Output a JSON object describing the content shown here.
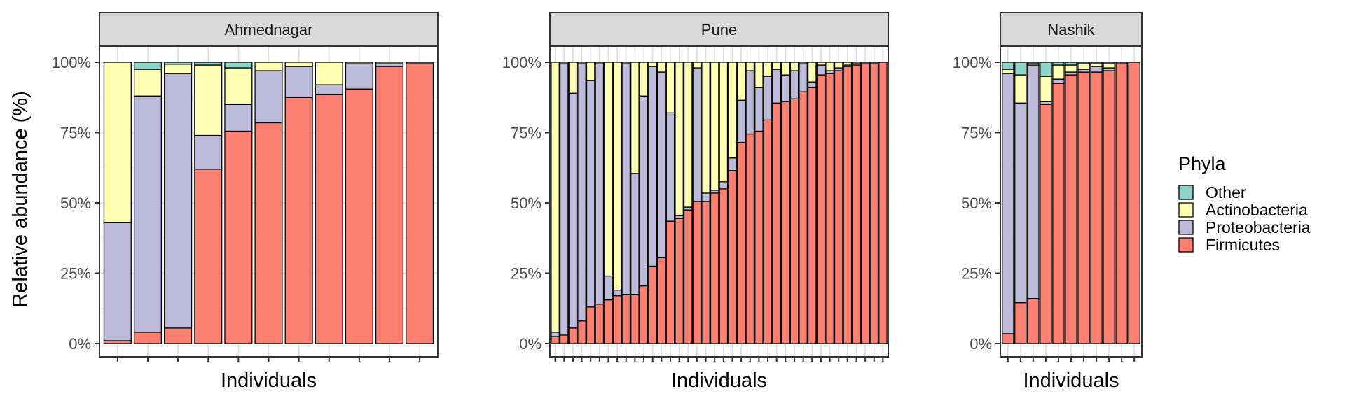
{
  "chart_data": {
    "type": "bar",
    "stacked": true,
    "ylabel": "Relative abundance (%)",
    "xlabel": "Individuals",
    "y_ticks": [
      "0%",
      "25%",
      "50%",
      "75%",
      "100%"
    ],
    "ylim": [
      0,
      100
    ],
    "grid": true,
    "legend": {
      "title": "Phyla",
      "position": "right",
      "items": [
        {
          "name": "Other",
          "color": "#8DD3C7"
        },
        {
          "name": "Actinobacteria",
          "color": "#FFFFB3"
        },
        {
          "name": "Proteobacteria",
          "color": "#BEBADA"
        },
        {
          "name": "Firmicutes",
          "color": "#FB8072"
        }
      ]
    },
    "stack_order": [
      "Firmicutes",
      "Proteobacteria",
      "Actinobacteria",
      "Other"
    ],
    "panels": [
      {
        "title": "Ahmednagar",
        "bars": [
          {
            "Firmicutes": 1,
            "Proteobacteria": 42,
            "Actinobacteria": 57,
            "Other": 0
          },
          {
            "Firmicutes": 4,
            "Proteobacteria": 84,
            "Actinobacteria": 9.5,
            "Other": 2.5
          },
          {
            "Firmicutes": 5.5,
            "Proteobacteria": 90.5,
            "Actinobacteria": 3.3,
            "Other": 0.7
          },
          {
            "Firmicutes": 62,
            "Proteobacteria": 12,
            "Actinobacteria": 25,
            "Other": 1
          },
          {
            "Firmicutes": 75.5,
            "Proteobacteria": 9.5,
            "Actinobacteria": 13,
            "Other": 2
          },
          {
            "Firmicutes": 78.5,
            "Proteobacteria": 18.5,
            "Actinobacteria": 3,
            "Other": 0
          },
          {
            "Firmicutes": 87.5,
            "Proteobacteria": 11,
            "Actinobacteria": 1.5,
            "Other": 0
          },
          {
            "Firmicutes": 88.5,
            "Proteobacteria": 3.5,
            "Actinobacteria": 8,
            "Other": 0
          },
          {
            "Firmicutes": 90.5,
            "Proteobacteria": 9,
            "Actinobacteria": 0.5,
            "Other": 0
          },
          {
            "Firmicutes": 98.5,
            "Proteobacteria": 1,
            "Actinobacteria": 0.5,
            "Other": 0
          },
          {
            "Firmicutes": 99.5,
            "Proteobacteria": 0.5,
            "Actinobacteria": 0,
            "Other": 0
          }
        ]
      },
      {
        "title": "Pune",
        "bars": [
          {
            "Firmicutes": 2.5,
            "Proteobacteria": 1.5,
            "Actinobacteria": 96,
            "Other": 0
          },
          {
            "Firmicutes": 3,
            "Proteobacteria": 96.5,
            "Actinobacteria": 0.5,
            "Other": 0
          },
          {
            "Firmicutes": 5.5,
            "Proteobacteria": 83.5,
            "Actinobacteria": 11,
            "Other": 0
          },
          {
            "Firmicutes": 8,
            "Proteobacteria": 91.5,
            "Actinobacteria": 0.5,
            "Other": 0
          },
          {
            "Firmicutes": 13,
            "Proteobacteria": 80.5,
            "Actinobacteria": 6.5,
            "Other": 0
          },
          {
            "Firmicutes": 14,
            "Proteobacteria": 85.5,
            "Actinobacteria": 0.5,
            "Other": 0
          },
          {
            "Firmicutes": 15.5,
            "Proteobacteria": 8.5,
            "Actinobacteria": 76,
            "Other": 0
          },
          {
            "Firmicutes": 17,
            "Proteobacteria": 2,
            "Actinobacteria": 81,
            "Other": 0
          },
          {
            "Firmicutes": 17.5,
            "Proteobacteria": 82,
            "Actinobacteria": 0.5,
            "Other": 0
          },
          {
            "Firmicutes": 17.5,
            "Proteobacteria": 43,
            "Actinobacteria": 39.5,
            "Other": 0
          },
          {
            "Firmicutes": 20.5,
            "Proteobacteria": 67.5,
            "Actinobacteria": 12,
            "Other": 0
          },
          {
            "Firmicutes": 27.5,
            "Proteobacteria": 71,
            "Actinobacteria": 1.5,
            "Other": 0
          },
          {
            "Firmicutes": 30.5,
            "Proteobacteria": 66,
            "Actinobacteria": 3.5,
            "Other": 0
          },
          {
            "Firmicutes": 43.5,
            "Proteobacteria": 38.5,
            "Actinobacteria": 18,
            "Other": 0
          },
          {
            "Firmicutes": 44.5,
            "Proteobacteria": 1,
            "Actinobacteria": 54.5,
            "Other": 0
          },
          {
            "Firmicutes": 47.5,
            "Proteobacteria": 1,
            "Actinobacteria": 51.5,
            "Other": 0
          },
          {
            "Firmicutes": 50.5,
            "Proteobacteria": 47.5,
            "Actinobacteria": 2,
            "Other": 0
          },
          {
            "Firmicutes": 50.5,
            "Proteobacteria": 3,
            "Actinobacteria": 46.5,
            "Other": 0
          },
          {
            "Firmicutes": 53.5,
            "Proteobacteria": 1,
            "Actinobacteria": 45.5,
            "Other": 0
          },
          {
            "Firmicutes": 55,
            "Proteobacteria": 2.5,
            "Actinobacteria": 42.5,
            "Other": 0
          },
          {
            "Firmicutes": 61.5,
            "Proteobacteria": 4.5,
            "Actinobacteria": 34,
            "Other": 0
          },
          {
            "Firmicutes": 71.5,
            "Proteobacteria": 15,
            "Actinobacteria": 13.5,
            "Other": 0
          },
          {
            "Firmicutes": 74.5,
            "Proteobacteria": 22.5,
            "Actinobacteria": 3,
            "Other": 0
          },
          {
            "Firmicutes": 75.5,
            "Proteobacteria": 15.5,
            "Actinobacteria": 9,
            "Other": 0
          },
          {
            "Firmicutes": 79.5,
            "Proteobacteria": 15.5,
            "Actinobacteria": 5,
            "Other": 0
          },
          {
            "Firmicutes": 85.5,
            "Proteobacteria": 12,
            "Actinobacteria": 2.5,
            "Other": 0
          },
          {
            "Firmicutes": 86,
            "Proteobacteria": 9.5,
            "Actinobacteria": 4.5,
            "Other": 0
          },
          {
            "Firmicutes": 87,
            "Proteobacteria": 10,
            "Actinobacteria": 3,
            "Other": 0
          },
          {
            "Firmicutes": 89.5,
            "Proteobacteria": 10,
            "Actinobacteria": 0.5,
            "Other": 0
          },
          {
            "Firmicutes": 91,
            "Proteobacteria": 2,
            "Actinobacteria": 7,
            "Other": 0
          },
          {
            "Firmicutes": 95.5,
            "Proteobacteria": 3.5,
            "Actinobacteria": 1,
            "Other": 0
          },
          {
            "Firmicutes": 96,
            "Proteobacteria": 1,
            "Actinobacteria": 3,
            "Other": 0
          },
          {
            "Firmicutes": 97,
            "Proteobacteria": 1,
            "Actinobacteria": 2,
            "Other": 0
          },
          {
            "Firmicutes": 98.5,
            "Proteobacteria": 0.5,
            "Actinobacteria": 1,
            "Other": 0
          },
          {
            "Firmicutes": 99,
            "Proteobacteria": 0.5,
            "Actinobacteria": 0.5,
            "Other": 0
          },
          {
            "Firmicutes": 99.5,
            "Proteobacteria": 0.5,
            "Actinobacteria": 0,
            "Other": 0
          },
          {
            "Firmicutes": 99.5,
            "Proteobacteria": 0.5,
            "Actinobacteria": 0,
            "Other": 0
          },
          {
            "Firmicutes": 100,
            "Proteobacteria": 0,
            "Actinobacteria": 0,
            "Other": 0
          }
        ]
      },
      {
        "title": "Nashik",
        "bars": [
          {
            "Firmicutes": 3.5,
            "Proteobacteria": 92.5,
            "Actinobacteria": 1.5,
            "Other": 2.5
          },
          {
            "Firmicutes": 14.5,
            "Proteobacteria": 71,
            "Actinobacteria": 10,
            "Other": 4.5
          },
          {
            "Firmicutes": 16,
            "Proteobacteria": 83,
            "Actinobacteria": 0.5,
            "Other": 0.5
          },
          {
            "Firmicutes": 85,
            "Proteobacteria": 1,
            "Actinobacteria": 9,
            "Other": 5
          },
          {
            "Firmicutes": 92.5,
            "Proteobacteria": 1.5,
            "Actinobacteria": 5,
            "Other": 1
          },
          {
            "Firmicutes": 95.5,
            "Proteobacteria": 1,
            "Actinobacteria": 2.5,
            "Other": 1
          },
          {
            "Firmicutes": 96.5,
            "Proteobacteria": 1,
            "Actinobacteria": 2,
            "Other": 0.5
          },
          {
            "Firmicutes": 96.5,
            "Proteobacteria": 2,
            "Actinobacteria": 1,
            "Other": 0.5
          },
          {
            "Firmicutes": 97,
            "Proteobacteria": 1,
            "Actinobacteria": 1.5,
            "Other": 0.5
          },
          {
            "Firmicutes": 99.5,
            "Proteobacteria": 0.5,
            "Actinobacteria": 0,
            "Other": 0
          },
          {
            "Firmicutes": 100,
            "Proteobacteria": 0,
            "Actinobacteria": 0,
            "Other": 0
          }
        ]
      }
    ]
  }
}
